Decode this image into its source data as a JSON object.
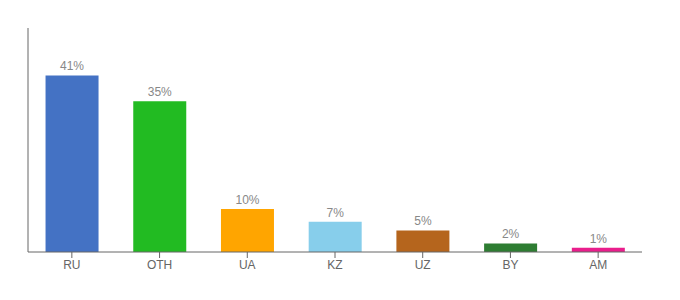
{
  "chart_data": {
    "type": "bar",
    "categories": [
      "RU",
      "OTH",
      "UA",
      "KZ",
      "UZ",
      "BY",
      "AM"
    ],
    "values": [
      41,
      35,
      10,
      7,
      5,
      2,
      1
    ],
    "value_labels": [
      "41%",
      "35%",
      "10%",
      "7%",
      "5%",
      "2%",
      "1%"
    ],
    "colors": [
      "#4472c4",
      "#22bb22",
      "#ffa500",
      "#87ceeb",
      "#b5651d",
      "#2e7d32",
      "#e91e8c"
    ],
    "ylim": [
      0,
      52
    ],
    "tick_labels": "x",
    "data_labels": true
  }
}
